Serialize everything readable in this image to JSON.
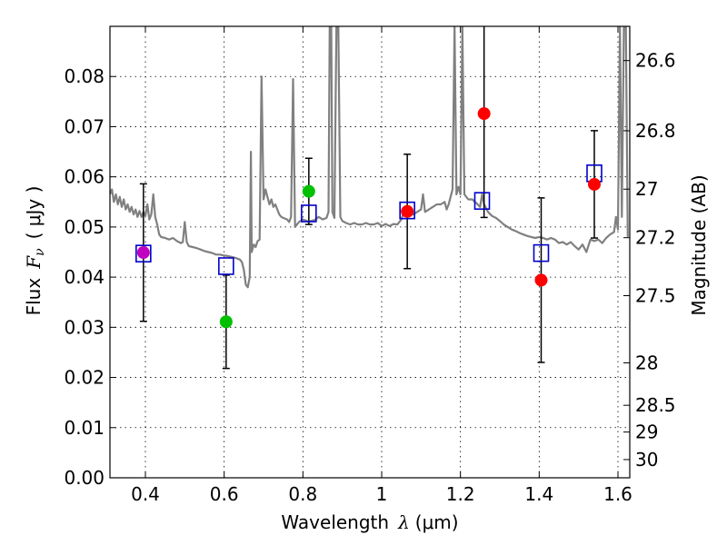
{
  "chart_data": {
    "type": "scatter",
    "xlabel_prefix": "Wavelength",
    "xlabel_symbol": "λ",
    "xlabel_unit": "(μm)",
    "ylabel_prefix": "Flux",
    "ylabel_symbol": "F",
    "ylabel_sub": "ν",
    "ylabel_unit": "( μJy )",
    "y2label": "Magnitude (AB)",
    "xlim": [
      0.31,
      1.63
    ],
    "ylim": [
      0.0,
      0.09
    ],
    "xticks": [
      0.4,
      0.6,
      0.8,
      1.0,
      1.2,
      1.4,
      1.6
    ],
    "xtick_labels": [
      "0.4",
      "0.6",
      "0.8",
      "1",
      "1.2",
      "1.4",
      "1.6"
    ],
    "yticks": [
      0.0,
      0.01,
      0.02,
      0.03,
      0.04,
      0.05,
      0.06,
      0.07,
      0.08
    ],
    "ytick_labels": [
      "0.00",
      "0.01",
      "0.02",
      "0.03",
      "0.04",
      "0.05",
      "0.06",
      "0.07",
      "0.08"
    ],
    "y2ticks": [
      {
        "mag": 26.6,
        "label": "26.6"
      },
      {
        "mag": 26.8,
        "label": "26.8"
      },
      {
        "mag": 27.0,
        "label": "27"
      },
      {
        "mag": 27.2,
        "label": "27.2"
      },
      {
        "mag": 27.5,
        "label": "27.5"
      },
      {
        "mag": 28.0,
        "label": "28"
      },
      {
        "mag": 28.5,
        "label": "28.5"
      },
      {
        "mag": 29.0,
        "label": "29"
      },
      {
        "mag": 30.0,
        "label": "30"
      }
    ],
    "grid": true,
    "template_color": "#808080",
    "template_spectrum": [
      [
        0.31,
        0.0565
      ],
      [
        0.315,
        0.0575
      ],
      [
        0.32,
        0.055
      ],
      [
        0.325,
        0.0565
      ],
      [
        0.33,
        0.0545
      ],
      [
        0.335,
        0.056
      ],
      [
        0.34,
        0.054
      ],
      [
        0.345,
        0.0555
      ],
      [
        0.35,
        0.0535
      ],
      [
        0.355,
        0.0545
      ],
      [
        0.36,
        0.053
      ],
      [
        0.365,
        0.054
      ],
      [
        0.37,
        0.0525
      ],
      [
        0.375,
        0.0535
      ],
      [
        0.38,
        0.052
      ],
      [
        0.385,
        0.0532
      ],
      [
        0.39,
        0.052
      ],
      [
        0.395,
        0.053
      ],
      [
        0.4,
        0.0522
      ],
      [
        0.405,
        0.0545
      ],
      [
        0.41,
        0.0515
      ],
      [
        0.415,
        0.0525
      ],
      [
        0.42,
        0.0565
      ],
      [
        0.425,
        0.052
      ],
      [
        0.43,
        0.0505
      ],
      [
        0.435,
        0.0485
      ],
      [
        0.44,
        0.048
      ],
      [
        0.45,
        0.0478
      ],
      [
        0.46,
        0.0475
      ],
      [
        0.47,
        0.0478
      ],
      [
        0.48,
        0.0472
      ],
      [
        0.49,
        0.0468
      ],
      [
        0.495,
        0.047
      ],
      [
        0.5,
        0.051
      ],
      [
        0.505,
        0.047
      ],
      [
        0.51,
        0.0462
      ],
      [
        0.52,
        0.046
      ],
      [
        0.53,
        0.0458
      ],
      [
        0.54,
        0.0455
      ],
      [
        0.55,
        0.0452
      ],
      [
        0.56,
        0.045
      ],
      [
        0.57,
        0.0448
      ],
      [
        0.58,
        0.0445
      ],
      [
        0.59,
        0.0445
      ],
      [
        0.6,
        0.0443
      ],
      [
        0.61,
        0.0442
      ],
      [
        0.62,
        0.044
      ],
      [
        0.63,
        0.0438
      ],
      [
        0.64,
        0.0435
      ],
      [
        0.645,
        0.043
      ],
      [
        0.65,
        0.0415
      ],
      [
        0.655,
        0.0385
      ],
      [
        0.66,
        0.038
      ],
      [
        0.665,
        0.04
      ],
      [
        0.668,
        0.065
      ],
      [
        0.67,
        0.045
      ],
      [
        0.675,
        0.0465
      ],
      [
        0.68,
        0.046
      ],
      [
        0.685,
        0.0472
      ],
      [
        0.69,
        0.0475
      ],
      [
        0.695,
        0.08
      ],
      [
        0.7,
        0.0555
      ],
      [
        0.705,
        0.0575
      ],
      [
        0.71,
        0.056
      ],
      [
        0.715,
        0.0545
      ],
      [
        0.72,
        0.0555
      ],
      [
        0.725,
        0.054
      ],
      [
        0.73,
        0.0545
      ],
      [
        0.735,
        0.0535
      ],
      [
        0.74,
        0.0525
      ],
      [
        0.745,
        0.052
      ],
      [
        0.75,
        0.0518
      ],
      [
        0.76,
        0.0515
      ],
      [
        0.765,
        0.051
      ],
      [
        0.77,
        0.052
      ],
      [
        0.775,
        0.0795
      ],
      [
        0.78,
        0.05
      ],
      [
        0.785,
        0.0505
      ],
      [
        0.79,
        0.051
      ],
      [
        0.8,
        0.0515
      ],
      [
        0.81,
        0.0512
      ],
      [
        0.815,
        0.051
      ],
      [
        0.82,
        0.0512
      ],
      [
        0.83,
        0.0514
      ],
      [
        0.84,
        0.052
      ],
      [
        0.85,
        0.0515
      ],
      [
        0.86,
        0.0518
      ],
      [
        0.865,
        0.053
      ],
      [
        0.868,
        0.09
      ],
      [
        0.872,
        0.09
      ],
      [
        0.875,
        0.053
      ],
      [
        0.88,
        0.0518
      ],
      [
        0.885,
        0.09
      ],
      [
        0.89,
        0.09
      ],
      [
        0.895,
        0.052
      ],
      [
        0.9,
        0.0512
      ],
      [
        0.91,
        0.0508
      ],
      [
        0.92,
        0.0505
      ],
      [
        0.93,
        0.0508
      ],
      [
        0.94,
        0.0505
      ],
      [
        0.95,
        0.0505
      ],
      [
        0.96,
        0.0508
      ],
      [
        0.97,
        0.0505
      ],
      [
        0.98,
        0.0505
      ],
      [
        0.99,
        0.0508
      ],
      [
        1.0,
        0.0502
      ],
      [
        1.01,
        0.0506
      ],
      [
        1.02,
        0.0502
      ],
      [
        1.03,
        0.0506
      ],
      [
        1.04,
        0.0505
      ],
      [
        1.05,
        0.0515
      ],
      [
        1.06,
        0.054
      ],
      [
        1.065,
        0.0535
      ],
      [
        1.07,
        0.0525
      ],
      [
        1.08,
        0.0525
      ],
      [
        1.09,
        0.053
      ],
      [
        1.1,
        0.0535
      ],
      [
        1.105,
        0.0565
      ],
      [
        1.11,
        0.053
      ],
      [
        1.12,
        0.0535
      ],
      [
        1.13,
        0.054
      ],
      [
        1.14,
        0.0545
      ],
      [
        1.15,
        0.0545
      ],
      [
        1.16,
        0.055
      ],
      [
        1.165,
        0.0535
      ],
      [
        1.17,
        0.0545
      ],
      [
        1.175,
        0.056
      ],
      [
        1.18,
        0.0575
      ],
      [
        1.185,
        0.09
      ],
      [
        1.19,
        0.0565
      ],
      [
        1.195,
        0.058
      ],
      [
        1.2,
        0.0565
      ],
      [
        1.205,
        0.09
      ],
      [
        1.21,
        0.0565
      ],
      [
        1.22,
        0.0555
      ],
      [
        1.23,
        0.0555
      ],
      [
        1.24,
        0.0548
      ],
      [
        1.25,
        0.054
      ],
      [
        1.255,
        0.0565
      ],
      [
        1.26,
        0.0545
      ],
      [
        1.27,
        0.053
      ],
      [
        1.28,
        0.0522
      ],
      [
        1.29,
        0.0518
      ],
      [
        1.3,
        0.0512
      ],
      [
        1.31,
        0.0505
      ],
      [
        1.32,
        0.05
      ],
      [
        1.33,
        0.0495
      ],
      [
        1.34,
        0.0492
      ],
      [
        1.35,
        0.0488
      ],
      [
        1.36,
        0.0485
      ],
      [
        1.37,
        0.0482
      ],
      [
        1.38,
        0.048
      ],
      [
        1.39,
        0.0478
      ],
      [
        1.4,
        0.048
      ],
      [
        1.41,
        0.0478
      ],
      [
        1.42,
        0.0475
      ],
      [
        1.43,
        0.0478
      ],
      [
        1.44,
        0.0475
      ],
      [
        1.45,
        0.0468
      ],
      [
        1.46,
        0.047
      ],
      [
        1.47,
        0.0465
      ],
      [
        1.48,
        0.047
      ],
      [
        1.49,
        0.0462
      ],
      [
        1.5,
        0.0455
      ],
      [
        1.51,
        0.0465
      ],
      [
        1.52,
        0.045
      ],
      [
        1.53,
        0.0475
      ],
      [
        1.54,
        0.0472
      ],
      [
        1.55,
        0.0475
      ],
      [
        1.56,
        0.0468
      ],
      [
        1.57,
        0.0478
      ],
      [
        1.58,
        0.0485
      ],
      [
        1.59,
        0.049
      ],
      [
        1.595,
        0.052
      ],
      [
        1.6,
        0.0495
      ],
      [
        1.605,
        0.09
      ],
      [
        1.61,
        0.052
      ],
      [
        1.615,
        0.09
      ],
      [
        1.62,
        0.09
      ],
      [
        1.625,
        0.048
      ]
    ],
    "model_points": {
      "marker": "open-square",
      "color": "#0000cc",
      "x": [
        0.395,
        0.605,
        0.815,
        1.065,
        1.255,
        1.405,
        1.54
      ],
      "y": [
        0.0447,
        0.0422,
        0.0527,
        0.0533,
        0.0552,
        0.0448,
        0.0607
      ]
    },
    "observed_points": [
      {
        "x": 0.395,
        "y": 0.0449,
        "yerr": 0.0137,
        "color": "#bf00bf"
      },
      {
        "x": 0.605,
        "y": 0.0311,
        "yerr": 0.0093,
        "color": "#00c000"
      },
      {
        "x": 0.815,
        "y": 0.0571,
        "yerr": 0.0066,
        "color": "#00c000"
      },
      {
        "x": 1.065,
        "y": 0.0531,
        "yerr": 0.0114,
        "color": "#ff0000"
      },
      {
        "x": 1.26,
        "y": 0.0726,
        "yerr": 0.0207,
        "color": "#ff0000"
      },
      {
        "x": 1.405,
        "y": 0.0394,
        "yerr": 0.0164,
        "color": "#ff0000"
      },
      {
        "x": 1.54,
        "y": 0.0585,
        "yerr": 0.0107,
        "color": "#ff0000"
      }
    ]
  }
}
